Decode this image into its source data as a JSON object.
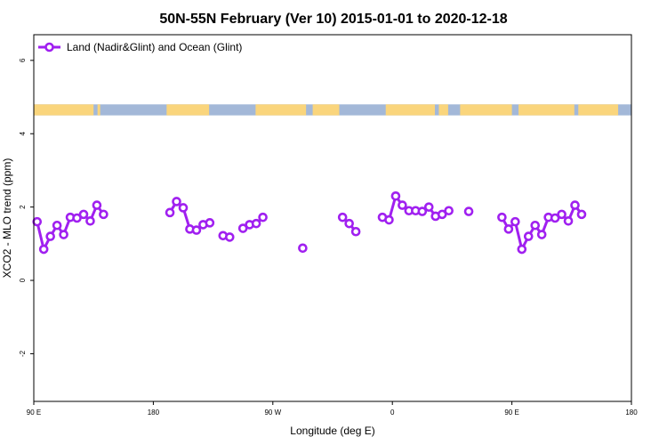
{
  "chart_data": {
    "type": "line",
    "title": "50N-55N February (Ver 10)   2015-01-01 to 2020-12-18",
    "xlabel": "Longitude (deg E)",
    "ylabel": "XCO2 - MLO trend (ppm)",
    "xlim": [
      90,
      540
    ],
    "ylim": [
      -3.3,
      6.7
    ],
    "x_ticks": [
      {
        "value": 90,
        "label": "90 E"
      },
      {
        "value": 180,
        "label": "180"
      },
      {
        "value": 270,
        "label": "90 W"
      },
      {
        "value": 360,
        "label": "0"
      },
      {
        "value": 450,
        "label": "90 E"
      },
      {
        "value": 540,
        "label": "180"
      }
    ],
    "y_ticks": [
      {
        "value": -2,
        "label": "-2"
      },
      {
        "value": 0,
        "label": "0"
      },
      {
        "value": 2,
        "label": "2"
      },
      {
        "value": 4,
        "label": "4"
      },
      {
        "value": 6,
        "label": "6"
      }
    ],
    "legend": {
      "placement": "top-left",
      "entries": [
        "Land (Nadir&Glint) and Ocean (Glint)"
      ]
    },
    "series": [
      {
        "name": "Land (Nadir&Glint) and Ocean (Glint)",
        "color": "#a020f0",
        "segments": [
          [
            [
              92.5,
              1.6
            ],
            [
              97.5,
              0.85
            ],
            [
              102.5,
              1.2
            ],
            [
              107.5,
              1.5
            ],
            [
              112.5,
              1.25
            ],
            [
              117.5,
              1.72
            ],
            [
              122.5,
              1.7
            ],
            [
              127.5,
              1.8
            ],
            [
              132.5,
              1.62
            ],
            [
              137.5,
              2.05
            ],
            [
              142.5,
              1.8
            ]
          ],
          [
            [
              192.5,
              1.85
            ],
            [
              197.5,
              2.15
            ],
            [
              202.5,
              1.98
            ],
            [
              207.5,
              1.4
            ],
            [
              212.5,
              1.37
            ],
            [
              217.5,
              1.52
            ],
            [
              222.5,
              1.57
            ]
          ],
          [
            [
              232.5,
              1.22
            ],
            [
              237.5,
              1.18
            ]
          ],
          [
            [
              247.5,
              1.42
            ],
            [
              252.5,
              1.52
            ],
            [
              257.5,
              1.55
            ],
            [
              262.5,
              1.72
            ]
          ],
          [
            [
              292.5,
              0.88
            ]
          ],
          [
            [
              322.5,
              1.72
            ],
            [
              327.5,
              1.55
            ],
            [
              332.5,
              1.33
            ]
          ],
          [
            [
              352.5,
              1.72
            ],
            [
              357.5,
              1.65
            ],
            [
              362.5,
              2.3
            ],
            [
              367.5,
              2.05
            ],
            [
              372.5,
              1.9
            ],
            [
              377.5,
              1.9
            ],
            [
              382.5,
              1.88
            ],
            [
              387.5,
              2.0
            ],
            [
              392.5,
              1.75
            ],
            [
              397.5,
              1.8
            ],
            [
              402.5,
              1.9
            ]
          ],
          [
            [
              417.5,
              1.88
            ]
          ],
          [
            [
              442.5,
              1.72
            ],
            [
              447.5,
              1.4
            ],
            [
              452.5,
              1.6
            ],
            [
              457.5,
              0.85
            ],
            [
              462.5,
              1.2
            ],
            [
              467.5,
              1.5
            ],
            [
              472.5,
              1.25
            ],
            [
              477.5,
              1.72
            ],
            [
              482.5,
              1.7
            ],
            [
              487.5,
              1.8
            ],
            [
              492.5,
              1.62
            ],
            [
              497.5,
              2.05
            ],
            [
              502.5,
              1.8
            ]
          ]
        ]
      }
    ],
    "land_ocean_band": {
      "y_range": [
        4.5,
        4.8
      ],
      "ocean_color": "#a3b8d8",
      "land_color": "#fad57c",
      "land_x_ranges": [
        [
          90,
          135
        ],
        [
          138,
          140
        ],
        [
          190,
          222
        ],
        [
          257,
          295
        ],
        [
          300,
          320
        ],
        [
          355,
          392
        ],
        [
          395,
          402
        ],
        [
          411,
          450
        ],
        [
          455,
          497
        ],
        [
          500,
          530
        ]
      ]
    }
  }
}
